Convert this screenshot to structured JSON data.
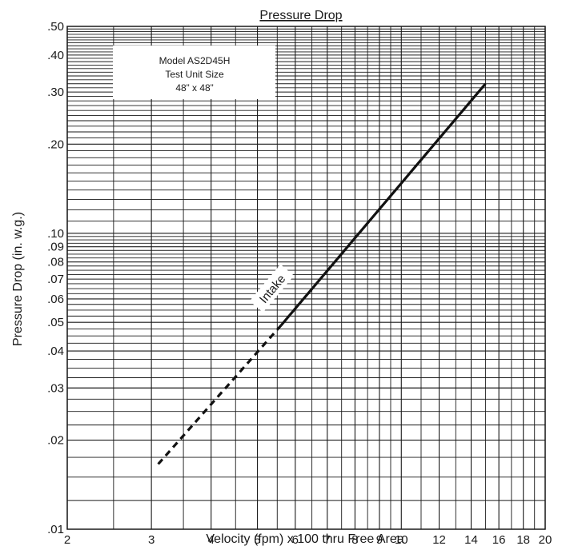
{
  "chart_data": {
    "type": "line",
    "title": "Pressure Drop",
    "xlabel": "Velocity (fpm) x 100 thru Free Area",
    "ylabel": "Pressure Drop (in. w.g.)",
    "x_scale": "log",
    "y_scale": "log",
    "xlim": [
      2,
      20
    ],
    "ylim": [
      0.01,
      0.5
    ],
    "grid": true,
    "x_ticks": [
      2,
      3,
      4,
      5,
      6,
      7,
      8,
      9,
      10,
      12,
      14,
      16,
      18,
      20
    ],
    "x_tick_labels": [
      "2",
      "3",
      "4",
      "5",
      "6",
      "7",
      "8",
      "9",
      "10",
      "12",
      "14",
      "16",
      "18",
      "20"
    ],
    "y_ticks": [
      0.01,
      0.02,
      0.03,
      0.04,
      0.05,
      0.06,
      0.07,
      0.08,
      0.09,
      0.1,
      0.2,
      0.3,
      0.4,
      0.5
    ],
    "y_tick_labels": [
      ".01",
      ".02",
      ".03",
      ".04",
      ".05",
      ".06",
      ".07",
      ".08",
      ".09",
      ".10",
      ".20",
      ".30",
      ".40",
      ".50"
    ],
    "note": [
      "Model AS2D45H",
      "Test Unit Size",
      "48” x 48”"
    ],
    "series": [
      {
        "name": "Intake",
        "points": [
          [
            3.1,
            0.0166
          ],
          [
            5.6,
            0.0488
          ]
        ],
        "style": "dashed"
      },
      {
        "name": "Intake",
        "points": [
          [
            5.6,
            0.0488
          ],
          [
            15.0,
            0.32
          ]
        ],
        "style": "solid"
      }
    ],
    "label": "Intake"
  }
}
